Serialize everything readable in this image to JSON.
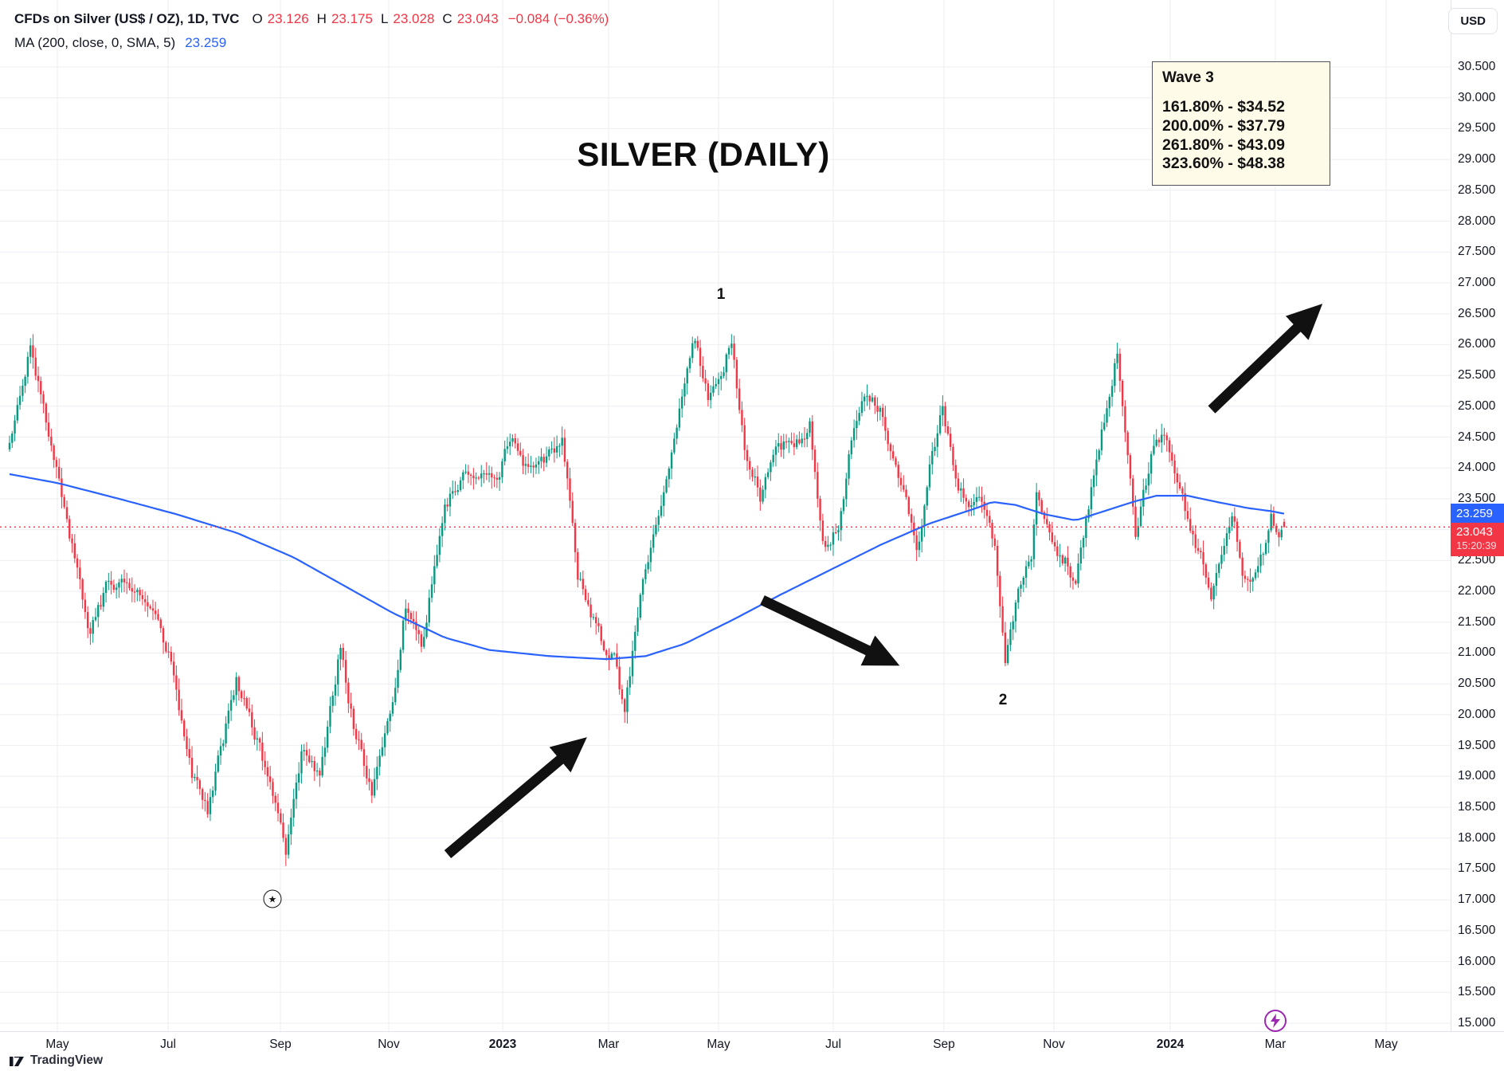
{
  "header": {
    "symbol_title": "CFDs on Silver (US$ / OZ), 1D, TVC",
    "ohlc": {
      "o_label": "O",
      "o_value": "23.126",
      "h_label": "H",
      "h_value": "23.175",
      "l_label": "L",
      "l_value": "23.028",
      "c_label": "C",
      "c_value": "23.043",
      "change": "−0.084 (−0.36%)"
    },
    "ma_row": {
      "label": "MA (200, close, 0, SMA, 5)",
      "value": "23.259"
    },
    "currency_button": "USD"
  },
  "annotations": {
    "chart_title": "SILVER (DAILY)",
    "wave_box": {
      "title": "Wave 3",
      "lines": [
        "161.80% - $34.52",
        "200.00% - $37.79",
        "261.80% - $43.09",
        "323.60% - $48.38"
      ]
    },
    "wave_point_1": "1",
    "wave_point_2": "2",
    "star_glyph": "★"
  },
  "badges": {
    "ma_badge": "23.259",
    "last_price_badge": "23.043",
    "countdown": "15:20:39"
  },
  "footer": {
    "brand": "TradingView"
  },
  "colors": {
    "up": "#089981",
    "down": "#f23645",
    "ma_line": "#2962ff",
    "accent_red": "#f23645",
    "accent_blue": "#2962ff",
    "grid": "#eceef2",
    "annotation_black": "#111111",
    "wave_box_bg": "#fffbe9",
    "lightning_purple": "#9c27b0"
  },
  "chart_data": {
    "type": "candlestick",
    "symbol": "CFDs on Silver (US$ / OZ)",
    "exchange": "TVC",
    "interval": "1D",
    "title": "SILVER (DAILY)",
    "last_ohlc": {
      "open": 23.126,
      "high": 23.175,
      "low": 23.028,
      "close": 23.043,
      "change": "−0.084",
      "change_pct": "−0.36%"
    },
    "ma200_value": 23.259,
    "ylim": [
      15.0,
      30.5
    ],
    "y_tick_step": 0.5,
    "y_tick_labels": [
      "30.500",
      "30.000",
      "29.500",
      "29.000",
      "28.500",
      "28.000",
      "27.500",
      "27.000",
      "26.500",
      "26.000",
      "25.500",
      "25.000",
      "24.500",
      "24.000",
      "23.500",
      "23.000",
      "22.500",
      "22.000",
      "21.500",
      "21.000",
      "20.500",
      "20.000",
      "19.500",
      "19.000",
      "18.500",
      "18.000",
      "17.500",
      "17.000",
      "16.500",
      "16.000",
      "15.500",
      "15.000"
    ],
    "x_tick_labels": [
      {
        "text": "May",
        "bold": false
      },
      {
        "text": "Jul",
        "bold": false
      },
      {
        "text": "Sep",
        "bold": false
      },
      {
        "text": "Nov",
        "bold": false
      },
      {
        "text": "2023",
        "bold": true
      },
      {
        "text": "Mar",
        "bold": false
      },
      {
        "text": "May",
        "bold": false
      },
      {
        "text": "Jul",
        "bold": false
      },
      {
        "text": "Sep",
        "bold": false
      },
      {
        "text": "Nov",
        "bold": false
      },
      {
        "text": "2024",
        "bold": true
      },
      {
        "text": "Mar",
        "bold": false
      },
      {
        "text": "May",
        "bold": false
      }
    ],
    "x_span_months": [
      "2022-05",
      "2024-05"
    ],
    "grid": true,
    "legend_position": "top-left",
    "num_candles": 490,
    "price_path_anchors": [
      [
        0,
        24.3
      ],
      [
        8,
        26.0
      ],
      [
        19,
        23.8
      ],
      [
        31,
        21.3
      ],
      [
        38,
        22.2
      ],
      [
        53,
        21.9
      ],
      [
        62,
        20.8
      ],
      [
        70,
        19.0
      ],
      [
        76,
        18.4
      ],
      [
        87,
        20.6
      ],
      [
        95,
        19.6
      ],
      [
        106,
        17.8
      ],
      [
        112,
        19.4
      ],
      [
        119,
        19.0
      ],
      [
        127,
        21.1
      ],
      [
        132,
        19.8
      ],
      [
        139,
        18.8
      ],
      [
        146,
        19.9
      ],
      [
        152,
        21.8
      ],
      [
        158,
        21.1
      ],
      [
        167,
        23.4
      ],
      [
        177,
        24.0
      ],
      [
        186,
        23.7
      ],
      [
        192,
        24.5
      ],
      [
        199,
        23.9
      ],
      [
        207,
        24.2
      ],
      [
        212,
        24.4
      ],
      [
        218,
        22.3
      ],
      [
        226,
        21.3
      ],
      [
        232,
        20.9
      ],
      [
        236,
        20.0
      ],
      [
        242,
        21.9
      ],
      [
        250,
        23.5
      ],
      [
        257,
        25.0
      ],
      [
        263,
        26.1
      ],
      [
        268,
        25.2
      ],
      [
        277,
        26.0
      ],
      [
        282,
        24.4
      ],
      [
        288,
        23.5
      ],
      [
        295,
        24.3
      ],
      [
        302,
        24.4
      ],
      [
        307,
        24.7
      ],
      [
        312,
        22.7
      ],
      [
        318,
        23.0
      ],
      [
        323,
        24.5
      ],
      [
        328,
        25.2
      ],
      [
        334,
        24.9
      ],
      [
        339,
        24.2
      ],
      [
        345,
        23.2
      ],
      [
        348,
        22.6
      ],
      [
        353,
        24.0
      ],
      [
        358,
        25.0
      ],
      [
        363,
        23.8
      ],
      [
        368,
        23.4
      ],
      [
        373,
        23.5
      ],
      [
        378,
        22.8
      ],
      [
        382,
        20.8
      ],
      [
        387,
        22.0
      ],
      [
        392,
        22.6
      ],
      [
        394,
        23.5
      ],
      [
        399,
        22.8
      ],
      [
        405,
        22.5
      ],
      [
        409,
        22.1
      ],
      [
        413,
        23.2
      ],
      [
        418,
        24.3
      ],
      [
        425,
        25.9
      ],
      [
        429,
        24.3
      ],
      [
        432,
        23.0
      ],
      [
        439,
        24.4
      ],
      [
        444,
        24.5
      ],
      [
        448,
        23.8
      ],
      [
        453,
        23.0
      ],
      [
        458,
        22.4
      ],
      [
        461,
        22.0
      ],
      [
        466,
        22.9
      ],
      [
        469,
        23.3
      ],
      [
        473,
        22.4
      ],
      [
        476,
        22.1
      ],
      [
        481,
        22.7
      ],
      [
        484,
        23.3
      ],
      [
        486,
        22.9
      ],
      [
        489,
        23.043
      ]
    ],
    "ma200_path_anchors": [
      [
        0,
        23.9
      ],
      [
        19,
        23.75
      ],
      [
        42,
        23.5
      ],
      [
        64,
        23.25
      ],
      [
        87,
        22.95
      ],
      [
        109,
        22.55
      ],
      [
        128,
        22.1
      ],
      [
        147,
        21.65
      ],
      [
        167,
        21.25
      ],
      [
        184,
        21.05
      ],
      [
        207,
        20.95
      ],
      [
        229,
        20.9
      ],
      [
        244,
        20.95
      ],
      [
        259,
        21.15
      ],
      [
        278,
        21.55
      ],
      [
        296,
        21.95
      ],
      [
        315,
        22.35
      ],
      [
        334,
        22.75
      ],
      [
        353,
        23.1
      ],
      [
        371,
        23.35
      ],
      [
        377,
        23.45
      ],
      [
        386,
        23.4
      ],
      [
        397,
        23.25
      ],
      [
        409,
        23.15
      ],
      [
        420,
        23.3
      ],
      [
        431,
        23.45
      ],
      [
        440,
        23.55
      ],
      [
        452,
        23.55
      ],
      [
        463,
        23.45
      ],
      [
        475,
        23.35
      ],
      [
        484,
        23.3
      ],
      [
        489,
        23.259
      ]
    ],
    "wave_points": [
      {
        "label": "1",
        "price": 26.1,
        "date_approx": "2023-05"
      },
      {
        "label": "2",
        "price": 20.8,
        "date_approx": "2023-10"
      }
    ],
    "fib_extension_targets": [
      {
        "level": "161.80%",
        "price": "$34.52"
      },
      {
        "level": "200.00%",
        "price": "$37.79"
      },
      {
        "level": "261.80%",
        "price": "$43.09"
      },
      {
        "level": "323.60%",
        "price": "$48.38"
      }
    ]
  }
}
